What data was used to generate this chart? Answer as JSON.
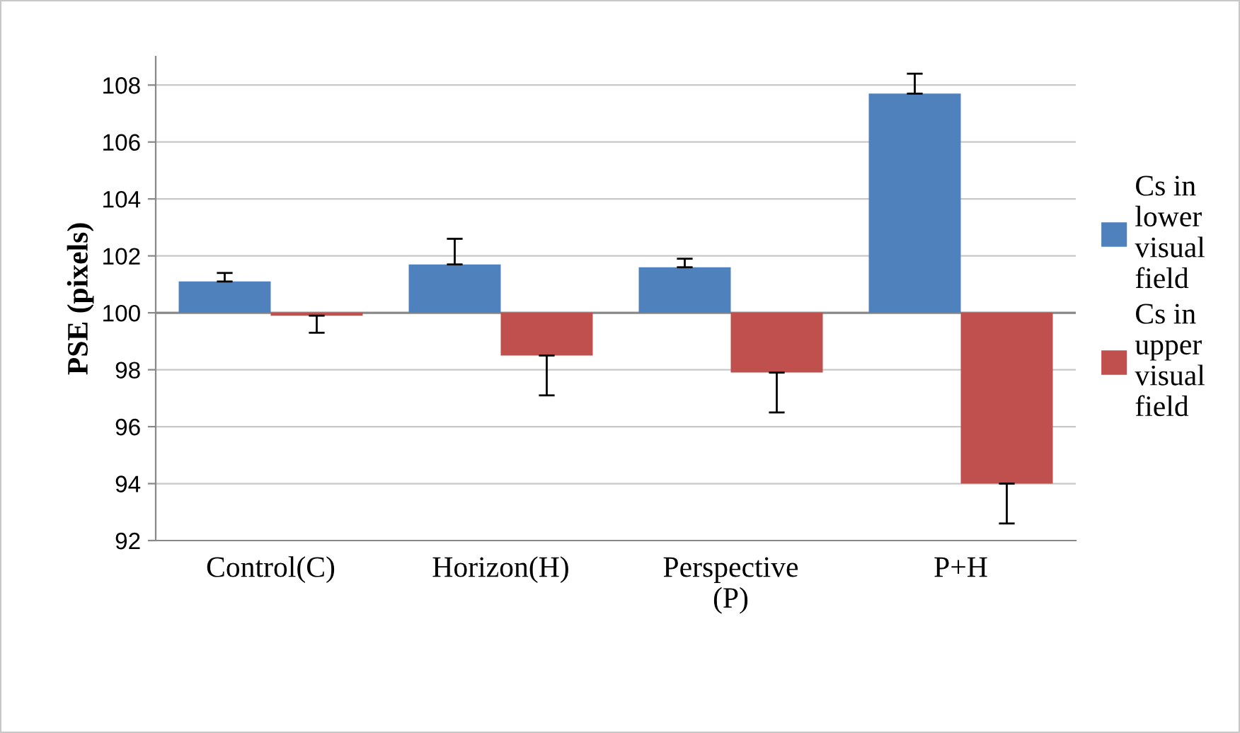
{
  "chart_data": {
    "type": "bar",
    "ylabel": "PSE (pixels)",
    "categories": [
      "Control(C)",
      "Horizon(H)",
      "Perspective\n(P)",
      "P+H"
    ],
    "series": [
      {
        "name": "Cs in\nlower\nvisual\nfield",
        "color": "#4f81bd",
        "base": [
          100,
          100,
          100,
          100
        ],
        "values": [
          1.1,
          1.7,
          1.6,
          7.7
        ],
        "errors": [
          [
            101.1,
            101.4
          ],
          [
            101.7,
            102.6
          ],
          [
            101.6,
            101.9
          ],
          [
            107.7,
            108.4
          ]
        ]
      },
      {
        "name": "Cs in\nupper\nvisual\nfield",
        "color": "#c0504d",
        "base": [
          100,
          100,
          100,
          100
        ],
        "values": [
          -0.1,
          -1.5,
          -2.1,
          -6.0
        ],
        "errors": [
          [
            99.3,
            99.9
          ],
          [
            97.1,
            98.5
          ],
          [
            96.5,
            97.9
          ],
          [
            92.6,
            94.0
          ]
        ]
      }
    ],
    "ylim": [
      92,
      109
    ],
    "yticks": [
      92,
      94,
      96,
      98,
      100,
      102,
      104,
      106,
      108
    ],
    "grid": "y",
    "legend": "right"
  }
}
